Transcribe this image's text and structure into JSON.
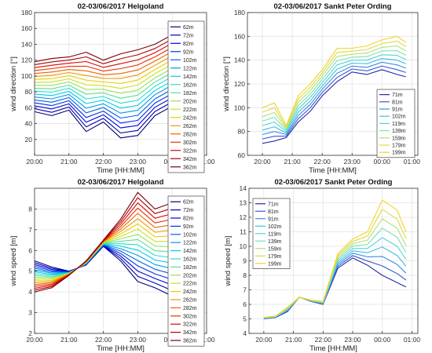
{
  "chart_data": [
    {
      "type": "line",
      "title": "02-03/06/2017 Helgoland",
      "xlabel": "Time [HH:MM]",
      "ylabel": "wind direction [°]",
      "xticks": [
        "20:00",
        "21:00",
        "22:00",
        "23:00",
        "00:00",
        "01:00"
      ],
      "xlim_hours": [
        20.0,
        25.0
      ],
      "ylim": [
        0,
        180
      ],
      "yticks": [
        20,
        40,
        60,
        80,
        100,
        120,
        140,
        160,
        180
      ],
      "grid": true,
      "legend_position": "right-inside",
      "series_names": [
        "62m",
        "72m",
        "82m",
        "92m",
        "102m",
        "122m",
        "142m",
        "162m",
        "182m",
        "202m",
        "222m",
        "242m",
        "262m",
        "282m",
        "302m",
        "322m",
        "342m",
        "362m"
      ],
      "x_hours": [
        20.0,
        20.5,
        21.0,
        21.5,
        22.0,
        22.5,
        23.0,
        23.5,
        24.0,
        24.5,
        24.8
      ],
      "bottom_values": [
        55,
        50,
        57,
        30,
        42,
        22,
        25,
        50,
        62,
        60,
        85
      ],
      "top_values": [
        118,
        122,
        124,
        130,
        120,
        128,
        133,
        140,
        152,
        148,
        143
      ]
    },
    {
      "type": "line",
      "title": "02-03/06/2017 Sankt Peter Ording",
      "xlabel": "Time [HH:MM]",
      "ylabel": "wind direction [°]",
      "xticks": [
        "20:00",
        "21:00",
        "22:00",
        "23:00",
        "00:00",
        "01:00"
      ],
      "xlim_hours": [
        19.5,
        25.2
      ],
      "ylim": [
        60,
        180
      ],
      "yticks": [
        60,
        80,
        100,
        120,
        140,
        160,
        180
      ],
      "grid": true,
      "legend_position": "bottom-right",
      "series_names": [
        "71m",
        "81m",
        "91m",
        "102m",
        "119m",
        "139m",
        "159m",
        "179m",
        "199m"
      ],
      "x_hours": [
        20.0,
        20.4,
        20.8,
        21.2,
        21.6,
        22.0,
        22.5,
        23.0,
        23.5,
        24.0,
        24.5,
        24.8
      ],
      "bottom_values": [
        70,
        72,
        75,
        88,
        97,
        110,
        122,
        130,
        128,
        132,
        128,
        126
      ],
      "top_values": [
        100,
        104,
        85,
        110,
        120,
        132,
        150,
        150,
        152,
        157,
        160,
        155
      ]
    },
    {
      "type": "line",
      "title": "02-03/06/2017 Helgoland",
      "xlabel": "Time [HH:MM]",
      "ylabel": "wind speed [m]",
      "xticks": [
        "20:00",
        "21:00",
        "22:00",
        "23:00",
        "00:00",
        "01:00"
      ],
      "xlim_hours": [
        20.0,
        25.0
      ],
      "ylim": [
        2,
        9
      ],
      "yticks": [
        2,
        3,
        4,
        5,
        6,
        7,
        8
      ],
      "grid": true,
      "legend_position": "right-inside",
      "series_names": [
        "62m",
        "72m",
        "82m",
        "92m",
        "102m",
        "122m",
        "142m",
        "162m",
        "182m",
        "202m",
        "222m",
        "242m",
        "262m",
        "282m",
        "302m",
        "322m",
        "342m",
        "362m"
      ],
      "x_hours": [
        20.0,
        20.5,
        21.0,
        21.5,
        22.0,
        22.5,
        23.0,
        23.5,
        24.0,
        24.5,
        24.8
      ],
      "bottom_values": [
        5.5,
        5.2,
        5.0,
        5.3,
        6.2,
        5.5,
        4.5,
        4.2,
        3.8,
        3.0,
        2.5
      ],
      "top_values": [
        4.0,
        4.2,
        4.8,
        5.5,
        6.5,
        7.5,
        8.8,
        8.0,
        8.3,
        7.5,
        7.2
      ]
    },
    {
      "type": "line",
      "title": "02-03/06/2017 Sankt Peter Ording",
      "xlabel": "Time [HH:MM]",
      "ylabel": "wind speed [m]",
      "xticks": [
        "20:00",
        "21:00",
        "22:00",
        "23:00",
        "00:00",
        "01:00"
      ],
      "xlim_hours": [
        19.5,
        25.2
      ],
      "ylim": [
        4,
        14
      ],
      "yticks": [
        4,
        5,
        6,
        7,
        8,
        9,
        10,
        11,
        12,
        13,
        14
      ],
      "grid": true,
      "legend_position": "top-left",
      "series_names": [
        "71m",
        "81m",
        "91m",
        "102m",
        "119m",
        "139m",
        "159m",
        "179m",
        "199m"
      ],
      "x_hours": [
        20.0,
        20.4,
        20.8,
        21.2,
        21.6,
        22.0,
        22.5,
        23.0,
        23.5,
        24.0,
        24.5,
        24.8
      ],
      "bottom_values": [
        5.0,
        5.1,
        5.5,
        6.5,
        6.2,
        6.0,
        8.5,
        9.2,
        8.7,
        8.0,
        7.5,
        7.2
      ],
      "top_values": [
        5.1,
        5.2,
        5.8,
        6.5,
        6.3,
        6.2,
        9.5,
        10.5,
        11.0,
        13.2,
        12.5,
        11.0
      ]
    }
  ]
}
